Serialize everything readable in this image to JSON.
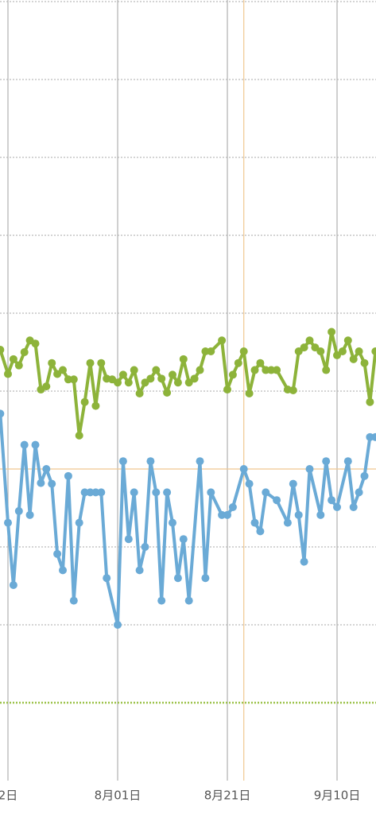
{
  "chart_data": {
    "type": "line",
    "xlim": [
      -1.45,
      67.1
    ],
    "xticks": [
      {
        "value": 0,
        "label": "2日"
      },
      {
        "value": 20,
        "label": "8月01日"
      },
      {
        "value": 40,
        "label": "8月21日"
      },
      {
        "value": 60,
        "label": "9月10日"
      }
    ],
    "ylim": [
      0,
      10
    ],
    "yticks": [
      2,
      3,
      4,
      5,
      6,
      7,
      8,
      9,
      10
    ],
    "grid": true,
    "reference_line": {
      "value": 1,
      "color": "#9cc24a"
    },
    "cursor": {
      "x": 43,
      "y": 4.0,
      "color": "#f0c890"
    },
    "series": [
      {
        "color": "#8db33a",
        "x": [
          -1.4,
          0,
          1,
          2,
          3,
          4,
          5,
          6,
          7,
          8,
          9,
          10,
          11,
          12,
          13,
          14,
          15,
          16,
          17,
          18,
          19,
          20,
          21,
          22,
          23,
          24,
          25,
          26,
          27,
          28,
          29,
          30,
          31,
          32,
          33,
          34,
          35,
          36,
          37,
          39,
          40,
          41,
          42,
          43,
          44,
          45,
          46,
          47,
          48,
          49,
          51,
          52,
          53,
          54,
          55,
          56,
          57,
          58,
          59,
          60,
          61,
          62,
          63,
          64,
          65,
          66,
          67
        ],
        "values": [
          5.53,
          5.22,
          5.41,
          5.33,
          5.5,
          5.65,
          5.61,
          5.02,
          5.06,
          5.36,
          5.22,
          5.27,
          5.15,
          5.15,
          4.43,
          4.86,
          5.36,
          4.81,
          5.36,
          5.16,
          5.15,
          5.11,
          5.21,
          5.11,
          5.27,
          4.97,
          5.11,
          5.16,
          5.27,
          5.16,
          4.98,
          5.21,
          5.11,
          5.41,
          5.11,
          5.16,
          5.27,
          5.51,
          5.51,
          5.65,
          5.02,
          5.21,
          5.36,
          5.51,
          4.97,
          5.27,
          5.36,
          5.27,
          5.27,
          5.27,
          5.02,
          5.01,
          5.51,
          5.56,
          5.65,
          5.56,
          5.51,
          5.27,
          5.76,
          5.46,
          5.51,
          5.65,
          5.41,
          5.51,
          5.36,
          4.86,
          5.51
        ]
      },
      {
        "color": "#6aaad6",
        "x": [
          -1.4,
          0,
          1,
          2,
          3,
          4,
          5,
          6,
          7,
          8,
          9,
          10,
          11,
          12,
          13,
          14,
          15,
          16,
          17,
          18,
          20,
          21,
          22,
          23,
          24,
          25,
          26,
          27,
          28,
          29,
          30,
          31,
          32,
          33,
          35,
          36,
          37,
          39,
          40,
          41,
          43,
          44,
          45,
          46,
          47,
          49,
          51,
          52,
          53,
          54,
          55,
          57,
          58,
          59,
          60,
          62,
          63,
          64,
          65,
          66,
          67
        ],
        "values": [
          4.71,
          3.31,
          2.51,
          3.46,
          4.31,
          3.41,
          4.31,
          3.82,
          4.0,
          3.81,
          2.91,
          2.7,
          3.91,
          2.31,
          3.31,
          3.7,
          3.7,
          3.7,
          3.7,
          2.6,
          2.0,
          4.1,
          3.1,
          3.7,
          2.7,
          3.0,
          4.1,
          3.7,
          2.31,
          3.7,
          3.31,
          2.6,
          3.1,
          2.31,
          4.1,
          2.6,
          3.7,
          3.41,
          3.41,
          3.51,
          4.0,
          3.81,
          3.31,
          3.2,
          3.7,
          3.6,
          3.31,
          3.81,
          3.41,
          2.81,
          4.0,
          3.41,
          4.1,
          3.6,
          3.51,
          4.1,
          3.51,
          3.7,
          3.91,
          4.41,
          4.41
        ]
      }
    ]
  }
}
